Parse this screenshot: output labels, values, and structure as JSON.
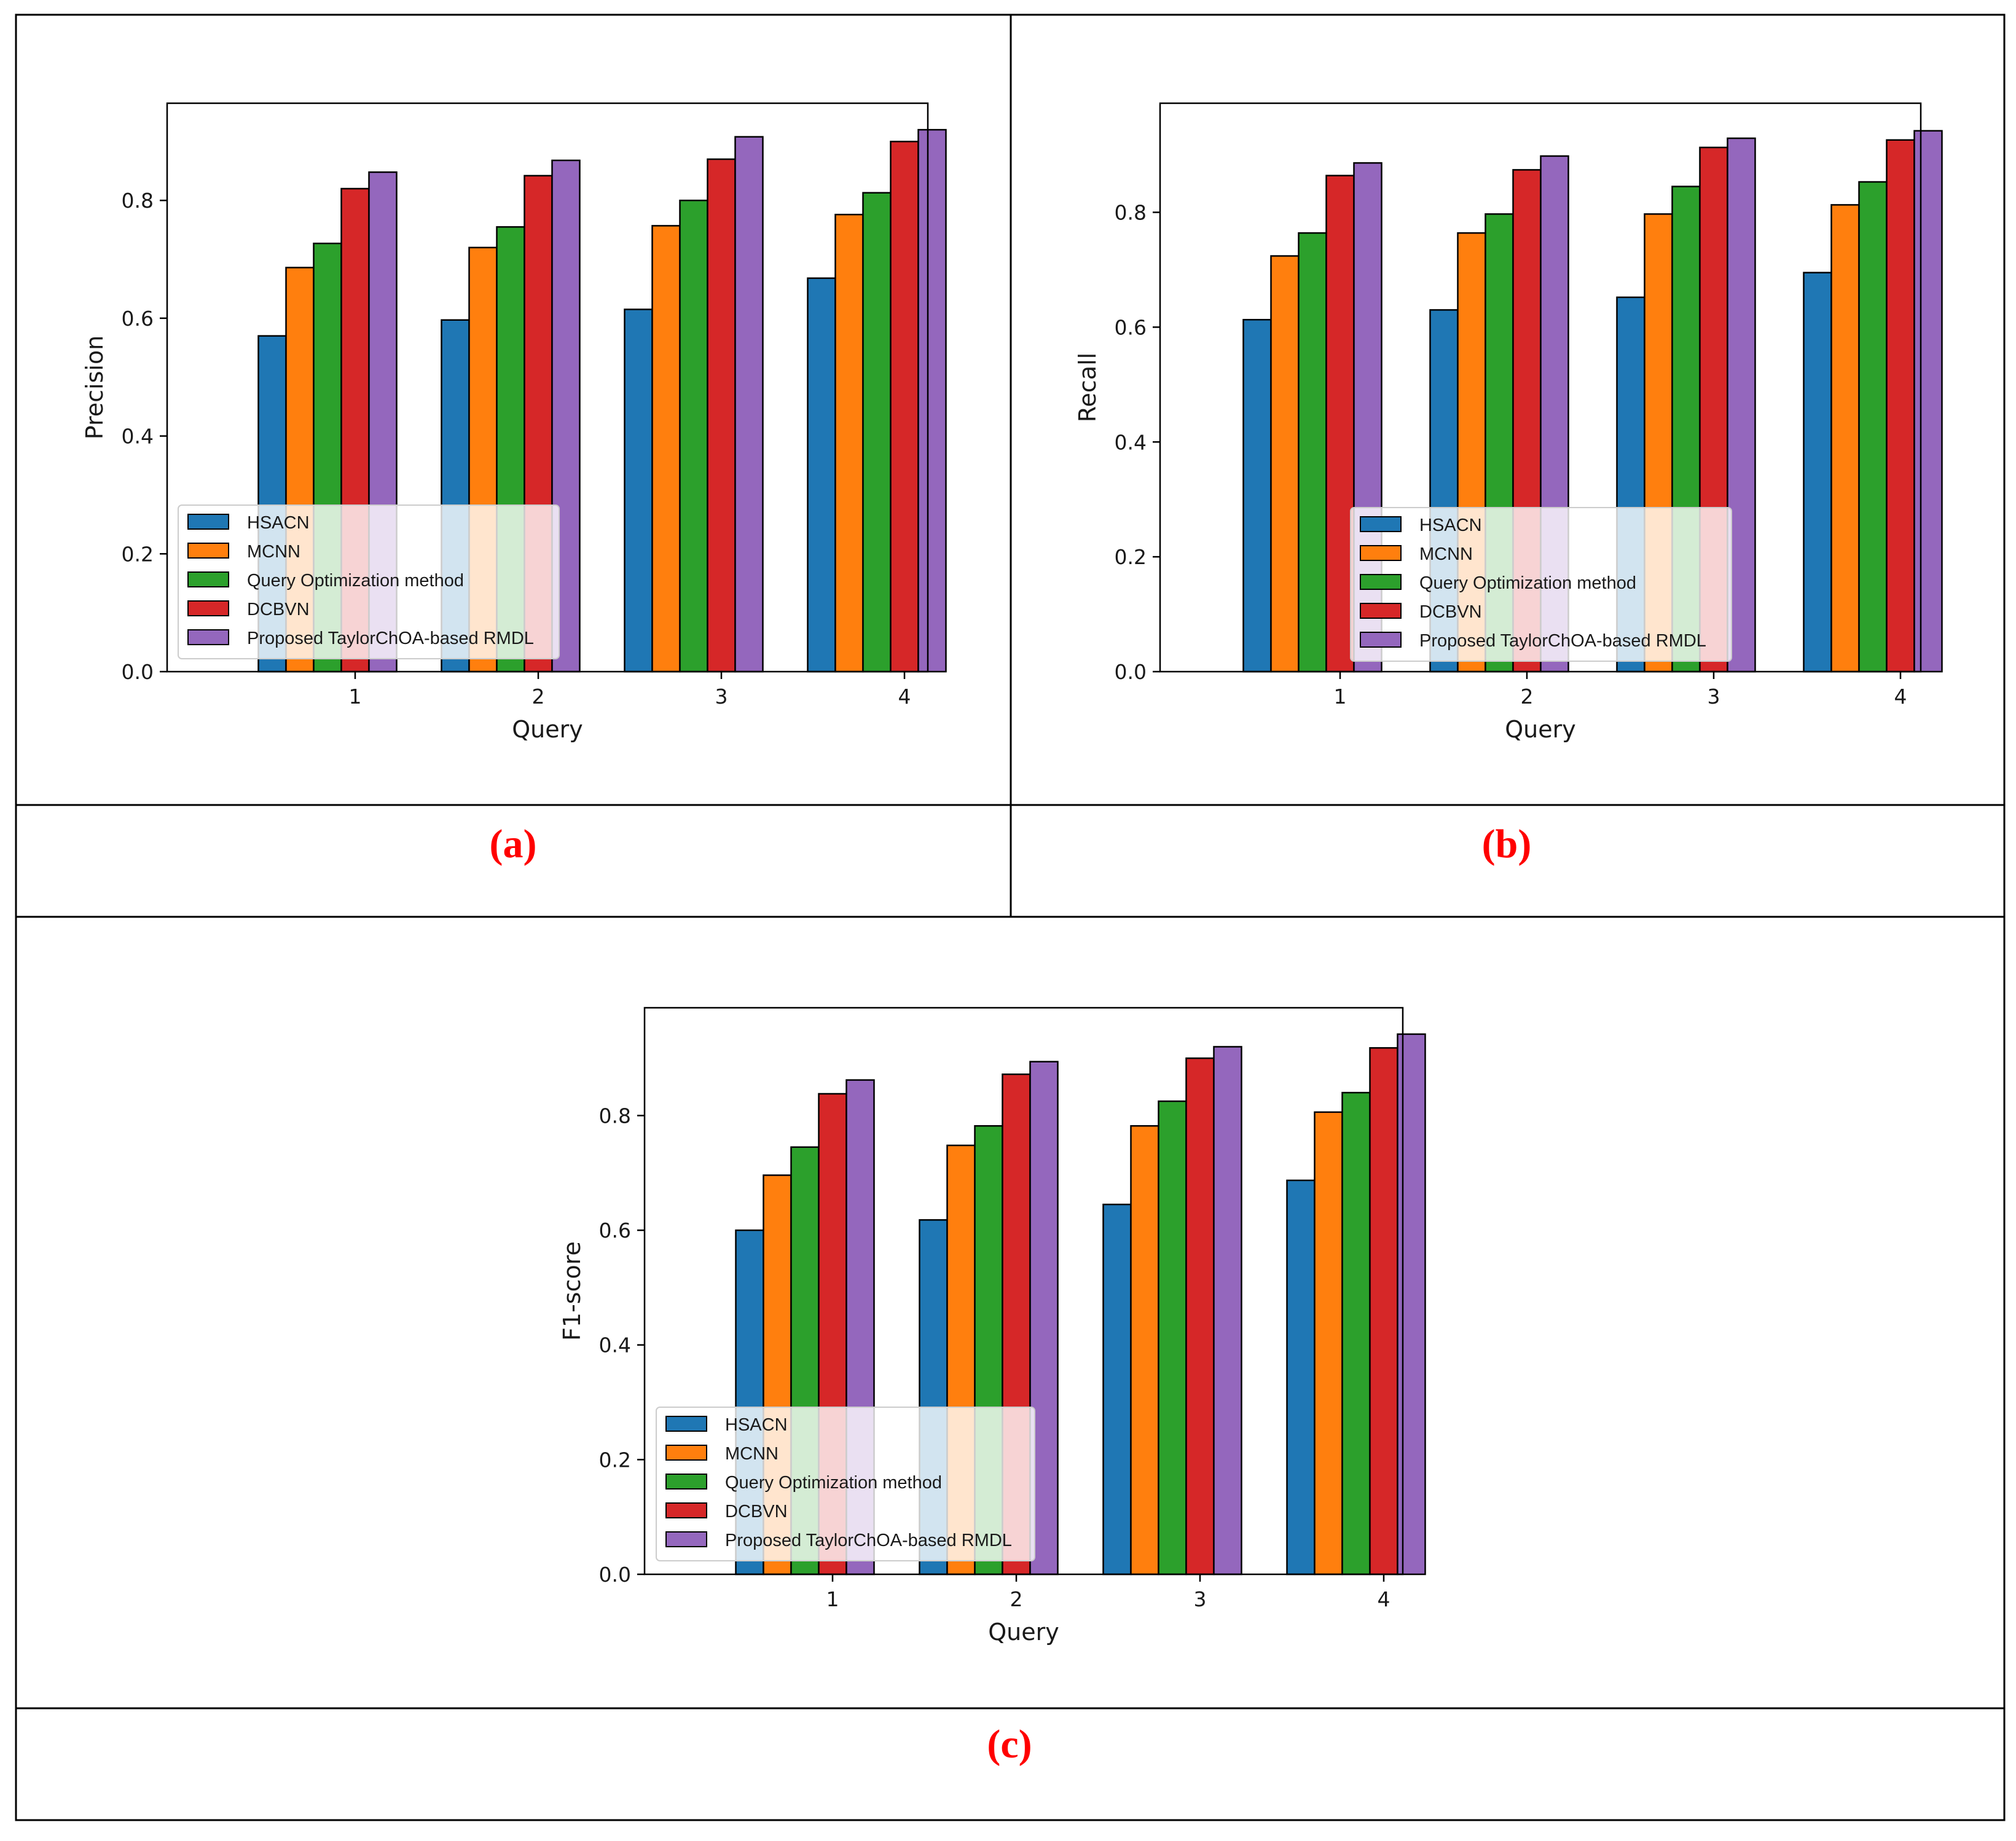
{
  "series_names": [
    "HSACN",
    "MCNN",
    "Query Optimization method",
    "DCBVN",
    "Proposed TaylorChOA-based RMDL"
  ],
  "colors": {
    "series": [
      "#1f77b4",
      "#ff7f0e",
      "#2ca02c",
      "#d62728",
      "#9467bd"
    ],
    "caption": "#ff0000",
    "border": "#000000"
  },
  "chart_data": [
    {
      "type": "bar",
      "caption": "(a)",
      "xlabel": "Query",
      "ylabel": "Precision",
      "categories": [
        "1",
        "2",
        "3",
        "4"
      ],
      "ylim": [
        0,
        0.965
      ],
      "yticks": [
        0.0,
        0.2,
        0.4,
        0.6,
        0.8
      ],
      "ytick_labels": [
        "0.0",
        "0.2",
        "0.4",
        "0.6",
        "0.8"
      ],
      "legend_position": "lower-left",
      "grid": false,
      "series": [
        {
          "name": "HSACN",
          "values": [
            0.57,
            0.597,
            0.615,
            0.668
          ]
        },
        {
          "name": "MCNN",
          "values": [
            0.686,
            0.72,
            0.757,
            0.776
          ]
        },
        {
          "name": "Query Optimization method",
          "values": [
            0.727,
            0.755,
            0.8,
            0.813
          ]
        },
        {
          "name": "DCBVN",
          "values": [
            0.82,
            0.842,
            0.87,
            0.9
          ]
        },
        {
          "name": "Proposed TaylorChOA-based RMDL",
          "values": [
            0.848,
            0.868,
            0.908,
            0.92
          ]
        }
      ]
    },
    {
      "type": "bar",
      "caption": "(b)",
      "xlabel": "Query",
      "ylabel": "Recall",
      "categories": [
        "1",
        "2",
        "3",
        "4"
      ],
      "ylim": [
        0,
        0.99
      ],
      "yticks": [
        0.0,
        0.2,
        0.4,
        0.6,
        0.8
      ],
      "ytick_labels": [
        "0.0",
        "0.2",
        "0.4",
        "0.6",
        "0.8"
      ],
      "legend_position": "lower-center",
      "grid": false,
      "series": [
        {
          "name": "HSACN",
          "values": [
            0.613,
            0.63,
            0.652,
            0.695
          ]
        },
        {
          "name": "MCNN",
          "values": [
            0.724,
            0.764,
            0.797,
            0.813
          ]
        },
        {
          "name": "Query Optimization method",
          "values": [
            0.764,
            0.797,
            0.845,
            0.853
          ]
        },
        {
          "name": "DCBVN",
          "values": [
            0.864,
            0.874,
            0.913,
            0.926
          ]
        },
        {
          "name": "Proposed TaylorChOA-based RMDL",
          "values": [
            0.886,
            0.898,
            0.929,
            0.942
          ]
        }
      ]
    },
    {
      "type": "bar",
      "caption": "(c)",
      "xlabel": "Query",
      "ylabel": "F1-score",
      "categories": [
        "1",
        "2",
        "3",
        "4"
      ],
      "ylim": [
        0,
        0.988
      ],
      "yticks": [
        0.0,
        0.2,
        0.4,
        0.6,
        0.8
      ],
      "ytick_labels": [
        "0.0",
        "0.2",
        "0.4",
        "0.6",
        "0.8"
      ],
      "legend_position": "lower-left",
      "grid": false,
      "series": [
        {
          "name": "HSACN",
          "values": [
            0.6,
            0.618,
            0.645,
            0.687
          ]
        },
        {
          "name": "MCNN",
          "values": [
            0.696,
            0.748,
            0.782,
            0.806
          ]
        },
        {
          "name": "Query Optimization method",
          "values": [
            0.745,
            0.782,
            0.825,
            0.84
          ]
        },
        {
          "name": "DCBVN",
          "values": [
            0.838,
            0.872,
            0.9,
            0.918
          ]
        },
        {
          "name": "Proposed TaylorChOA-based RMDL",
          "values": [
            0.862,
            0.894,
            0.92,
            0.942
          ]
        }
      ]
    }
  ]
}
